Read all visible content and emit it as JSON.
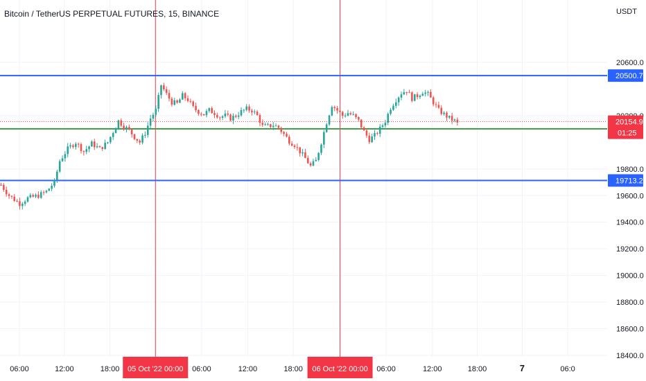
{
  "chart_data": {
    "type": "candlestick",
    "title": "Bitcoin / TetherUS PERPETUAL FUTURES, 15, BINANCE",
    "currency": "USDT",
    "ylim": [
      18400,
      20800
    ],
    "y_ticks": [
      {
        "value": 18400,
        "label": "18400.0"
      },
      {
        "value": 18600,
        "label": "18600.0"
      },
      {
        "value": 18800,
        "label": "18800.0"
      },
      {
        "value": 19000,
        "label": "19000.0"
      },
      {
        "value": 19200,
        "label": "19200.0"
      },
      {
        "value": 19400,
        "label": "19400.0"
      },
      {
        "value": 19600,
        "label": "19600.0"
      },
      {
        "value": 19800,
        "label": "19800.0"
      },
      {
        "value": 20200,
        "label": "20200.0"
      },
      {
        "value": 20600,
        "label": "20600.0"
      }
    ],
    "x_ticks": [
      {
        "pos": 0.032,
        "label": "06:00",
        "style": "normal"
      },
      {
        "pos": 0.106,
        "label": "12:00",
        "style": "normal"
      },
      {
        "pos": 0.181,
        "label": "18:00",
        "style": "normal"
      },
      {
        "pos": 0.256,
        "label": "05 Oct '22   00:00",
        "style": "crosshair"
      },
      {
        "pos": 0.332,
        "label": "06:00",
        "style": "normal"
      },
      {
        "pos": 0.408,
        "label": "12:00",
        "style": "normal"
      },
      {
        "pos": 0.483,
        "label": "18:00",
        "style": "normal"
      },
      {
        "pos": 0.56,
        "label": "06 Oct '22   00:00",
        "style": "crosshair"
      },
      {
        "pos": 0.636,
        "label": "06:00",
        "style": "normal"
      },
      {
        "pos": 0.712,
        "label": "12:00",
        "style": "normal"
      },
      {
        "pos": 0.786,
        "label": "18:00",
        "style": "normal"
      },
      {
        "pos": 0.86,
        "label": "7",
        "style": "bold"
      },
      {
        "pos": 0.935,
        "label": "06:0",
        "style": "normal"
      }
    ],
    "vertical_markers": [
      0.256,
      0.56
    ],
    "horizontal_levels": [
      {
        "value": 20500.7,
        "label": "20500.7",
        "color": "#2962ff"
      },
      {
        "value": 20100.9,
        "label": "20100.9",
        "color": "#43a047"
      },
      {
        "value": 19713.2,
        "label": "19713.2",
        "color": "#2962ff"
      }
    ],
    "last_price": {
      "value": 20154.9,
      "label": "20154.9",
      "countdown": "01:25",
      "color": "#f23645"
    },
    "up_color": "#26a69a",
    "down_color": "#ef5350",
    "path_keypoints": [
      [
        0,
        19680
      ],
      [
        3,
        19600
      ],
      [
        7,
        19540
      ],
      [
        10,
        19580
      ],
      [
        14,
        19600
      ],
      [
        17,
        19630
      ],
      [
        20,
        19700
      ],
      [
        22,
        19860
      ],
      [
        25,
        19950
      ],
      [
        28,
        20000
      ],
      [
        31,
        19930
      ],
      [
        34,
        19990
      ],
      [
        37,
        19950
      ],
      [
        40,
        20000
      ],
      [
        42,
        20080
      ],
      [
        44,
        20160
      ],
      [
        46,
        20120
      ],
      [
        48,
        20090
      ],
      [
        50,
        20040
      ],
      [
        52,
        20000
      ],
      [
        54,
        20070
      ],
      [
        56,
        20180
      ],
      [
        58,
        20240
      ],
      [
        60,
        20430
      ],
      [
        62,
        20360
      ],
      [
        64,
        20300
      ],
      [
        66,
        20290
      ],
      [
        68,
        20350
      ],
      [
        70,
        20320
      ],
      [
        72,
        20260
      ],
      [
        74,
        20230
      ],
      [
        76,
        20210
      ],
      [
        78,
        20240
      ],
      [
        80,
        20220
      ],
      [
        82,
        20190
      ],
      [
        84,
        20200
      ],
      [
        86,
        20180
      ],
      [
        88,
        20200
      ],
      [
        90,
        20230
      ],
      [
        92,
        20250
      ],
      [
        94,
        20240
      ],
      [
        96,
        20200
      ],
      [
        98,
        20120
      ],
      [
        100,
        20120
      ],
      [
        102,
        20130
      ],
      [
        104,
        20110
      ],
      [
        106,
        20060
      ],
      [
        108,
        20010
      ],
      [
        110,
        19980
      ],
      [
        112,
        19930
      ],
      [
        114,
        19880
      ],
      [
        116,
        19820
      ],
      [
        118,
        19860
      ],
      [
        120,
        20000
      ],
      [
        122,
        20150
      ],
      [
        124,
        20280
      ],
      [
        126,
        20240
      ],
      [
        128,
        20200
      ],
      [
        130,
        20220
      ],
      [
        132,
        20200
      ],
      [
        134,
        20160
      ],
      [
        136,
        20080
      ],
      [
        138,
        20020
      ],
      [
        140,
        20050
      ],
      [
        142,
        20100
      ],
      [
        144,
        20160
      ],
      [
        146,
        20260
      ],
      [
        148,
        20320
      ],
      [
        150,
        20370
      ],
      [
        152,
        20390
      ],
      [
        154,
        20330
      ],
      [
        156,
        20350
      ],
      [
        158,
        20380
      ],
      [
        160,
        20360
      ],
      [
        162,
        20300
      ],
      [
        164,
        20240
      ],
      [
        166,
        20210
      ],
      [
        168,
        20180
      ],
      [
        170,
        20160
      ],
      [
        171,
        20140
      ]
    ],
    "candle_count": 172,
    "bar_spacing": 3.85
  }
}
